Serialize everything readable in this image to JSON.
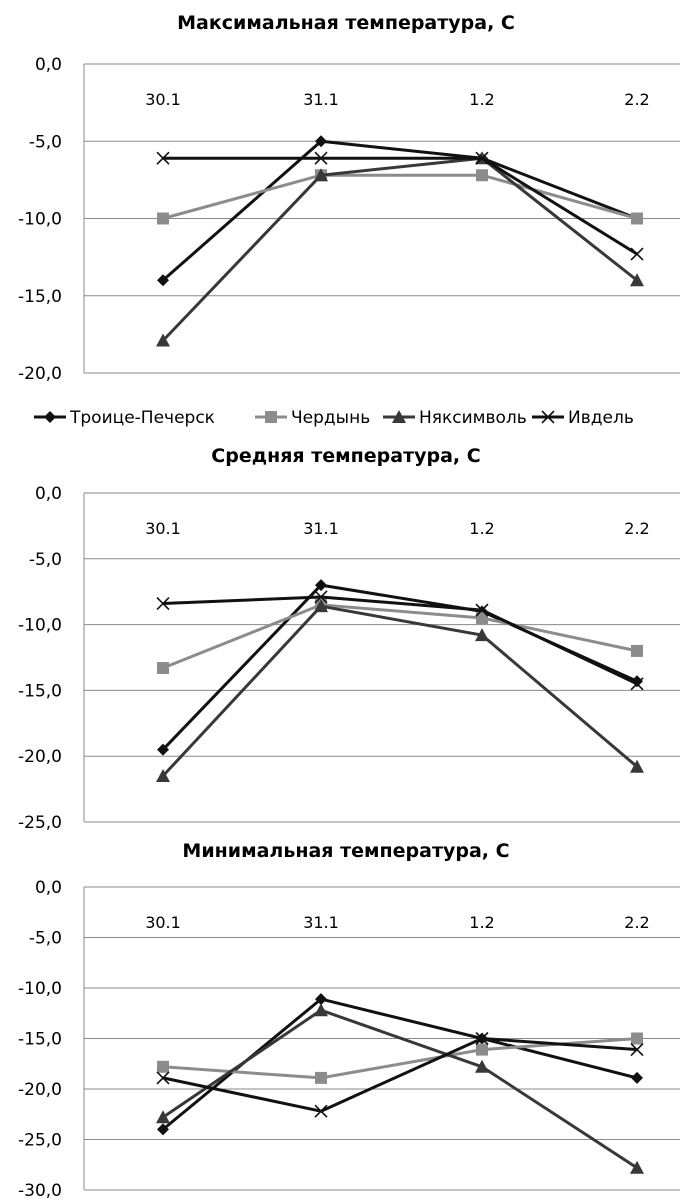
{
  "chart_data": [
    {
      "type": "line",
      "title": "Максимальная температура, С",
      "categories": [
        "30.1",
        "31.1",
        "1.2",
        "2.2"
      ],
      "ylim": [
        -20,
        0
      ],
      "yticks": [
        0,
        -5,
        -10,
        -15,
        -20
      ],
      "ytick_labels": [
        "0,0",
        "-5,0",
        "-10,0",
        "-15,0",
        "-20,0"
      ],
      "grid": true,
      "legend": "bottom",
      "series": [
        {
          "name": "Троице-Печерск",
          "values": [
            -14.0,
            -5.0,
            -6.1,
            -10.0
          ]
        },
        {
          "name": "Чердынь",
          "values": [
            -10.0,
            -7.2,
            -7.2,
            -10.0
          ]
        },
        {
          "name": "Няксимволь",
          "values": [
            -17.9,
            -7.2,
            -6.1,
            -14.0
          ]
        },
        {
          "name": "Ивдель",
          "values": [
            -6.1,
            -6.1,
            -6.1,
            -12.3
          ]
        }
      ]
    },
    {
      "type": "line",
      "title": "Средняя температура, С",
      "categories": [
        "30.1",
        "31.1",
        "1.2",
        "2.2"
      ],
      "ylim": [
        -25,
        0
      ],
      "yticks": [
        0,
        -5,
        -10,
        -15,
        -20,
        -25
      ],
      "ytick_labels": [
        "0,0",
        "-5,0",
        "-10,0",
        "-15,0",
        "-20,0",
        "-25,0"
      ],
      "grid": true,
      "series": [
        {
          "name": "Троице-Печерск",
          "values": [
            -19.5,
            -7.0,
            -9.0,
            -14.3
          ]
        },
        {
          "name": "Чердынь",
          "values": [
            -13.3,
            -8.5,
            -9.5,
            -12.0
          ]
        },
        {
          "name": "Няксимволь",
          "values": [
            -21.5,
            -8.6,
            -10.8,
            -20.8
          ]
        },
        {
          "name": "Ивдель",
          "values": [
            -8.4,
            -7.9,
            -8.9,
            -14.5
          ]
        }
      ]
    },
    {
      "type": "line",
      "title": "Минимальная температура, С",
      "categories": [
        "30.1",
        "31.1",
        "1.2",
        "2.2"
      ],
      "ylim": [
        -30,
        0
      ],
      "yticks": [
        0,
        -5,
        -10,
        -15,
        -20,
        -25,
        -30
      ],
      "ytick_labels": [
        "0,0",
        "-5,0",
        "-10,0",
        "-15,0",
        "-20,0",
        "-25,0",
        "-30,0"
      ],
      "grid": true,
      "series": [
        {
          "name": "Троице-Печерск",
          "values": [
            -24.0,
            -11.1,
            -15.0,
            -18.9
          ]
        },
        {
          "name": "Чердынь",
          "values": [
            -17.8,
            -18.9,
            -16.1,
            -15.0
          ]
        },
        {
          "name": "Няксимволь",
          "values": [
            -22.8,
            -12.2,
            -17.8,
            -27.8
          ]
        },
        {
          "name": "Ивдель",
          "values": [
            -18.9,
            -22.2,
            -15.0,
            -16.1
          ]
        }
      ]
    }
  ],
  "series_styles": [
    {
      "color": "#111111",
      "marker": "diamond"
    },
    {
      "color": "#8c8c8c",
      "marker": "square"
    },
    {
      "color": "#383838",
      "marker": "triangle"
    },
    {
      "color": "#111111",
      "marker": "x"
    }
  ]
}
